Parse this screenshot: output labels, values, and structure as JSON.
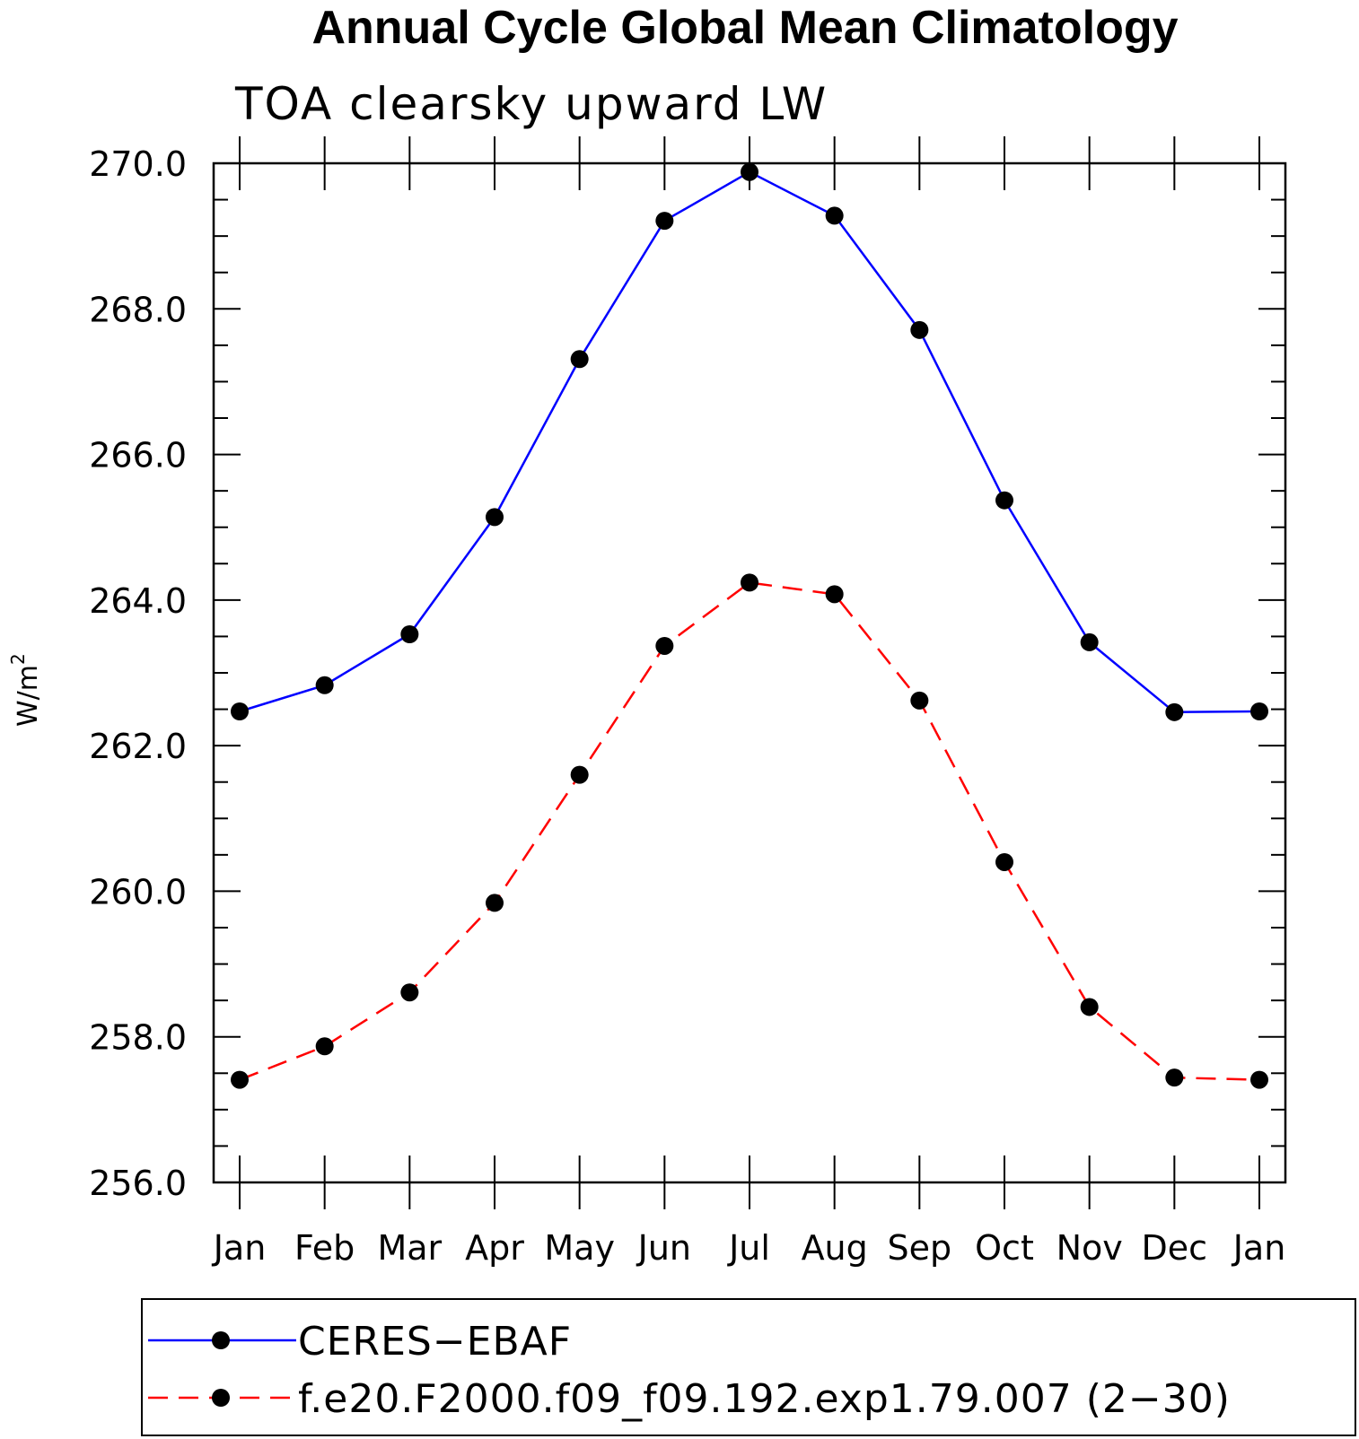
{
  "chart_data": {
    "type": "line",
    "title": "Annual Cycle Global Mean Climatology",
    "subtitle": "TOA clearsky upward LW",
    "ylabel_base": "W/m",
    "ylabel_sup": "2",
    "ylim": [
      256.0,
      270.0
    ],
    "yticks": [
      256.0,
      258.0,
      260.0,
      262.0,
      264.0,
      266.0,
      268.0,
      270.0
    ],
    "ytick_labels": [
      "256.0",
      "258.0",
      "260.0",
      "262.0",
      "264.0",
      "266.0",
      "268.0",
      "270.0"
    ],
    "categories": [
      "Jan",
      "Feb",
      "Mar",
      "Apr",
      "May",
      "Jun",
      "Jul",
      "Aug",
      "Sep",
      "Oct",
      "Nov",
      "Dec",
      "Jan"
    ],
    "series": [
      {
        "name": "CERES−EBAF",
        "color": "#0000ff",
        "dash": "solid",
        "values": [
          262.47,
          262.83,
          263.53,
          265.14,
          267.31,
          269.21,
          269.88,
          269.28,
          267.71,
          265.37,
          263.42,
          262.46,
          262.47
        ]
      },
      {
        "name": "f.e20.F2000.f09_f09.192.exp1.79.007 (2−30)",
        "color": "#ff0000",
        "dash": "dashed",
        "values": [
          257.41,
          257.87,
          258.61,
          259.84,
          261.6,
          263.37,
          264.24,
          264.08,
          262.62,
          260.4,
          258.41,
          257.44,
          257.41
        ]
      }
    ],
    "marker_color": "#000000",
    "legend_position": "bottom"
  }
}
